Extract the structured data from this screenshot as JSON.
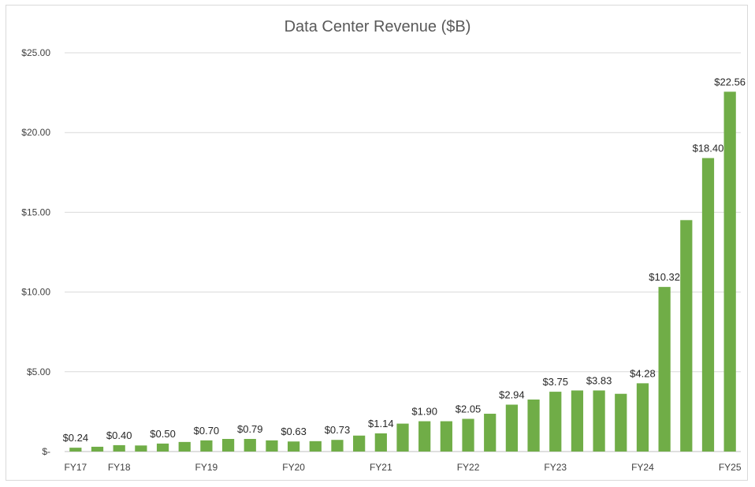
{
  "chart_data": {
    "type": "bar",
    "title": "Data Center Revenue ($B)",
    "xlabel": "",
    "ylabel": "",
    "ylim": [
      0,
      25
    ],
    "y_ticks": [
      "$-",
      "$5.00",
      "$10.00",
      "$15.00",
      "$20.00",
      "$25.00"
    ],
    "x_tick_labels": [
      {
        "index": 0,
        "label": "FY17"
      },
      {
        "index": 2,
        "label": "FY18"
      },
      {
        "index": 6,
        "label": "FY19"
      },
      {
        "index": 10,
        "label": "FY20"
      },
      {
        "index": 14,
        "label": "FY21"
      },
      {
        "index": 18,
        "label": "FY22"
      },
      {
        "index": 22,
        "label": "FY23"
      },
      {
        "index": 26,
        "label": "FY24"
      },
      {
        "index": 30,
        "label": "FY25"
      }
    ],
    "values": [
      0.24,
      0.3,
      0.4,
      0.38,
      0.5,
      0.6,
      0.7,
      0.79,
      0.79,
      0.7,
      0.63,
      0.65,
      0.73,
      1.0,
      1.14,
      1.75,
      1.9,
      1.9,
      2.05,
      2.37,
      2.94,
      3.26,
      3.75,
      3.83,
      3.83,
      3.62,
      4.28,
      10.32,
      14.51,
      18.4,
      22.56
    ],
    "data_labels": [
      {
        "index": 0,
        "text": "$0.24"
      },
      {
        "index": 2,
        "text": "$0.40"
      },
      {
        "index": 4,
        "text": "$0.50"
      },
      {
        "index": 6,
        "text": "$0.70"
      },
      {
        "index": 8,
        "text": "$0.79"
      },
      {
        "index": 10,
        "text": "$0.63"
      },
      {
        "index": 12,
        "text": "$0.73"
      },
      {
        "index": 14,
        "text": "$1.14"
      },
      {
        "index": 16,
        "text": "$1.90"
      },
      {
        "index": 18,
        "text": "$2.05"
      },
      {
        "index": 20,
        "text": "$2.94"
      },
      {
        "index": 22,
        "text": "$3.75"
      },
      {
        "index": 24,
        "text": "$3.83"
      },
      {
        "index": 26,
        "text": "$4.28"
      },
      {
        "index": 27,
        "text": "$10.32"
      },
      {
        "index": 29,
        "text": "$18.40"
      },
      {
        "index": 30,
        "text": "$22.56"
      }
    ],
    "bar_color": "#70ad47",
    "grid": true,
    "legend": "none"
  }
}
